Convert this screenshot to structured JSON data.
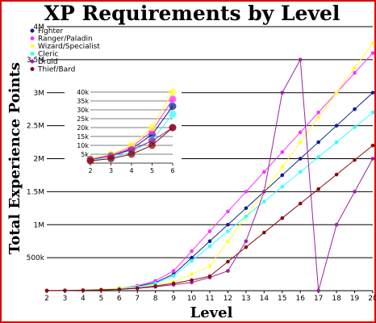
{
  "chart_data": [
    {
      "type": "line",
      "title": "XP Requirements by Level",
      "xlabel": "Level",
      "ylabel": "Total Experience Points",
      "x": [
        2,
        3,
        4,
        5,
        6,
        7,
        8,
        9,
        10,
        11,
        12,
        13,
        14,
        15,
        16,
        17,
        18,
        19,
        20
      ],
      "xlim": [
        2,
        20
      ],
      "ylim": [
        0,
        4000000
      ],
      "yticks": [
        {
          "value": 500000,
          "label": "500k"
        },
        {
          "value": 1000000,
          "label": "1M"
        },
        {
          "value": 1500000,
          "label": "1.5M"
        },
        {
          "value": 2000000,
          "label": "2M"
        },
        {
          "value": 2500000,
          "label": "2.5M"
        },
        {
          "value": 3000000,
          "label": "3M"
        },
        {
          "value": 3500000,
          "label": "3.5M"
        },
        {
          "value": 4000000,
          "label": "4M"
        }
      ],
      "legend_position": "top-left",
      "series": [
        {
          "name": "Fighter",
          "color": "#0a1f8f",
          "values": [
            2000,
            4000,
            8000,
            16000,
            32000,
            64000,
            125000,
            250000,
            500000,
            750000,
            1000000,
            1250000,
            1500000,
            1750000,
            2000000,
            2250000,
            2500000,
            2750000,
            3000000
          ]
        },
        {
          "name": "Ranger/Paladin",
          "color": "#ff33ff",
          "values": [
            2250,
            4500,
            9000,
            18000,
            36000,
            75000,
            150000,
            300000,
            600000,
            900000,
            1200000,
            1500000,
            1800000,
            2100000,
            2400000,
            2700000,
            3000000,
            3300000,
            3600000
          ]
        },
        {
          "name": "Wizard/Specialist",
          "color": "#ffff33",
          "values": [
            2500,
            5000,
            10000,
            20000,
            40000,
            60000,
            90000,
            135000,
            250000,
            375000,
            750000,
            1125000,
            1500000,
            1875000,
            2250000,
            2625000,
            3000000,
            3375000,
            3750000
          ]
        },
        {
          "name": "Cleric",
          "color": "#33ffff",
          "values": [
            1500,
            3000,
            6000,
            13000,
            27500,
            55000,
            110000,
            225000,
            450000,
            675000,
            900000,
            1125000,
            1350000,
            1575000,
            1800000,
            2025000,
            2250000,
            2475000,
            2700000
          ]
        },
        {
          "name": "Druid",
          "color": "#a020a0",
          "values": [
            2000,
            4000,
            7500,
            12500,
            20000,
            35000,
            60000,
            90000,
            125000,
            200000,
            300000,
            750000,
            1500000,
            3000000,
            3500000,
            500,
            1000000,
            1500000,
            2000000
          ]
        },
        {
          "name": "Thief/Bard",
          "color": "#8b0a0a",
          "values": [
            1250,
            2500,
            5000,
            10000,
            20000,
            40000,
            70000,
            110000,
            160000,
            220000,
            440000,
            660000,
            880000,
            1100000,
            1320000,
            1540000,
            1760000,
            1980000,
            2200000
          ]
        }
      ]
    },
    {
      "type": "line",
      "title": "",
      "xlabel": "",
      "ylabel": "",
      "x": [
        2,
        3,
        4,
        5,
        6
      ],
      "xlim": [
        2,
        6
      ],
      "ylim": [
        0,
        40000
      ],
      "yticks": [
        {
          "value": 5000,
          "label": "5k"
        },
        {
          "value": 10000,
          "label": "10k"
        },
        {
          "value": 15000,
          "label": "15k"
        },
        {
          "value": 20000,
          "label": "20k"
        },
        {
          "value": 25000,
          "label": "25k"
        },
        {
          "value": 30000,
          "label": "30k"
        },
        {
          "value": 35000,
          "label": "35k"
        },
        {
          "value": 40000,
          "label": "40k"
        }
      ],
      "series": [
        {
          "color": "#0a1f8f",
          "values": [
            2000,
            4000,
            8000,
            16000,
            32000
          ]
        },
        {
          "color": "#ff33ff",
          "values": [
            2250,
            4500,
            9000,
            18000,
            36000
          ]
        },
        {
          "color": "#ffff33",
          "values": [
            2500,
            5000,
            10000,
            20000,
            40000
          ]
        },
        {
          "color": "#33ffff",
          "values": [
            1500,
            3000,
            6000,
            13000,
            27500
          ]
        },
        {
          "color": "#a020a0",
          "values": [
            2000,
            4000,
            7500,
            12500,
            20000
          ]
        },
        {
          "color": "#8b0a0a",
          "values": [
            1250,
            2500,
            5000,
            10000,
            20000
          ]
        }
      ]
    }
  ]
}
